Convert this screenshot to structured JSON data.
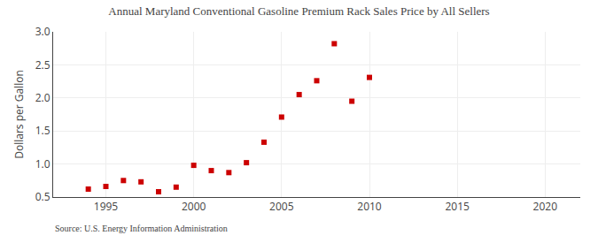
{
  "chart_data": {
    "type": "scatter",
    "title": "Annual Maryland Conventional Gasoline Premium Rack Sales Price by All Sellers",
    "ylabel": "Dollars per Gallon",
    "source": "Source: U.S. Energy Information Administration",
    "x": [
      1994,
      1995,
      1996,
      1997,
      1998,
      1999,
      2000,
      2001,
      2002,
      2003,
      2004,
      2005,
      2006,
      2007,
      2008,
      2009,
      2010
    ],
    "values": [
      0.62,
      0.66,
      0.75,
      0.73,
      0.58,
      0.65,
      0.98,
      0.9,
      0.87,
      1.02,
      1.33,
      1.71,
      2.05,
      2.26,
      2.82,
      1.95,
      2.31
    ],
    "color": "#cc0000",
    "marker": "square",
    "xlim": [
      1992,
      2022
    ],
    "ylim": [
      0.5,
      3.0
    ],
    "xticks": [
      1995,
      2000,
      2005,
      2010,
      2015,
      2020
    ],
    "yticks": [
      0.5,
      {
        "value": 1,
        "label": "1.0"
      },
      1.5,
      {
        "value": 2,
        "label": "2.0"
      },
      2.5,
      {
        "value": 3,
        "label": "3.0"
      }
    ],
    "grid": true
  }
}
